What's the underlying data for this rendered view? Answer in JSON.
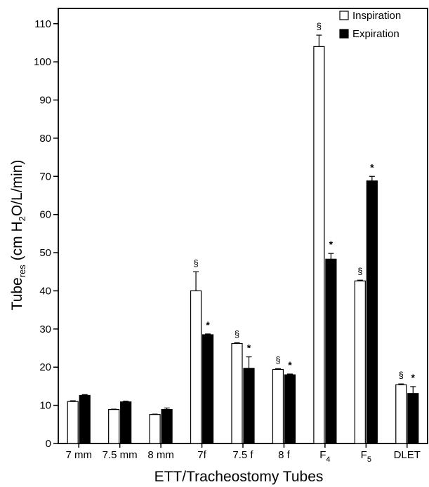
{
  "chart_data": {
    "type": "bar",
    "categories": [
      {
        "label": "7 mm",
        "base": "",
        "sub": ""
      },
      {
        "label": "7.5 mm",
        "base": "",
        "sub": ""
      },
      {
        "label": "8 mm",
        "base": "",
        "sub": ""
      },
      {
        "label": "7f",
        "base": "",
        "sub": ""
      },
      {
        "label": "7.5 f",
        "base": "",
        "sub": ""
      },
      {
        "label": "8 f",
        "base": "",
        "sub": ""
      },
      {
        "label": "",
        "base": "F",
        "sub": "4"
      },
      {
        "label": "",
        "base": "F",
        "sub": "5"
      },
      {
        "label": "DLET",
        "base": "",
        "sub": ""
      }
    ],
    "series": [
      {
        "name": "Inspiration",
        "color": "#ffffff",
        "values": [
          11.0,
          8.9,
          7.6,
          40.0,
          26.2,
          19.4,
          104.0,
          42.6,
          15.4
        ],
        "errors": [
          0.2,
          0.1,
          0.1,
          5.0,
          0.2,
          0.2,
          3.0,
          0.2,
          0.2
        ],
        "markers": [
          "",
          "",
          "",
          "§",
          "§",
          "§",
          "§",
          "§",
          "§"
        ]
      },
      {
        "name": "Expiration",
        "color": "#000000",
        "values": [
          12.6,
          10.9,
          8.9,
          28.5,
          19.7,
          18.0,
          48.3,
          68.8,
          13.1
        ],
        "errors": [
          0.2,
          0.2,
          0.4,
          0.2,
          3.0,
          0.2,
          1.5,
          1.2,
          1.8
        ],
        "markers": [
          "",
          "",
          "",
          "*",
          "*",
          "*",
          "*",
          "*",
          "*"
        ]
      }
    ],
    "xlabel": "ETT/Tracheostomy Tubes",
    "ylabel": {
      "base": "Tube",
      "sub": "res",
      "rest_a": " (cm H",
      "sub2": "2",
      "rest_b": "O/L/min)"
    },
    "yticks": [
      0,
      10,
      20,
      30,
      40,
      50,
      60,
      70,
      80,
      90,
      100,
      110
    ],
    "ylim": [
      0,
      114
    ],
    "grid": false,
    "legend_position": "top-right"
  }
}
